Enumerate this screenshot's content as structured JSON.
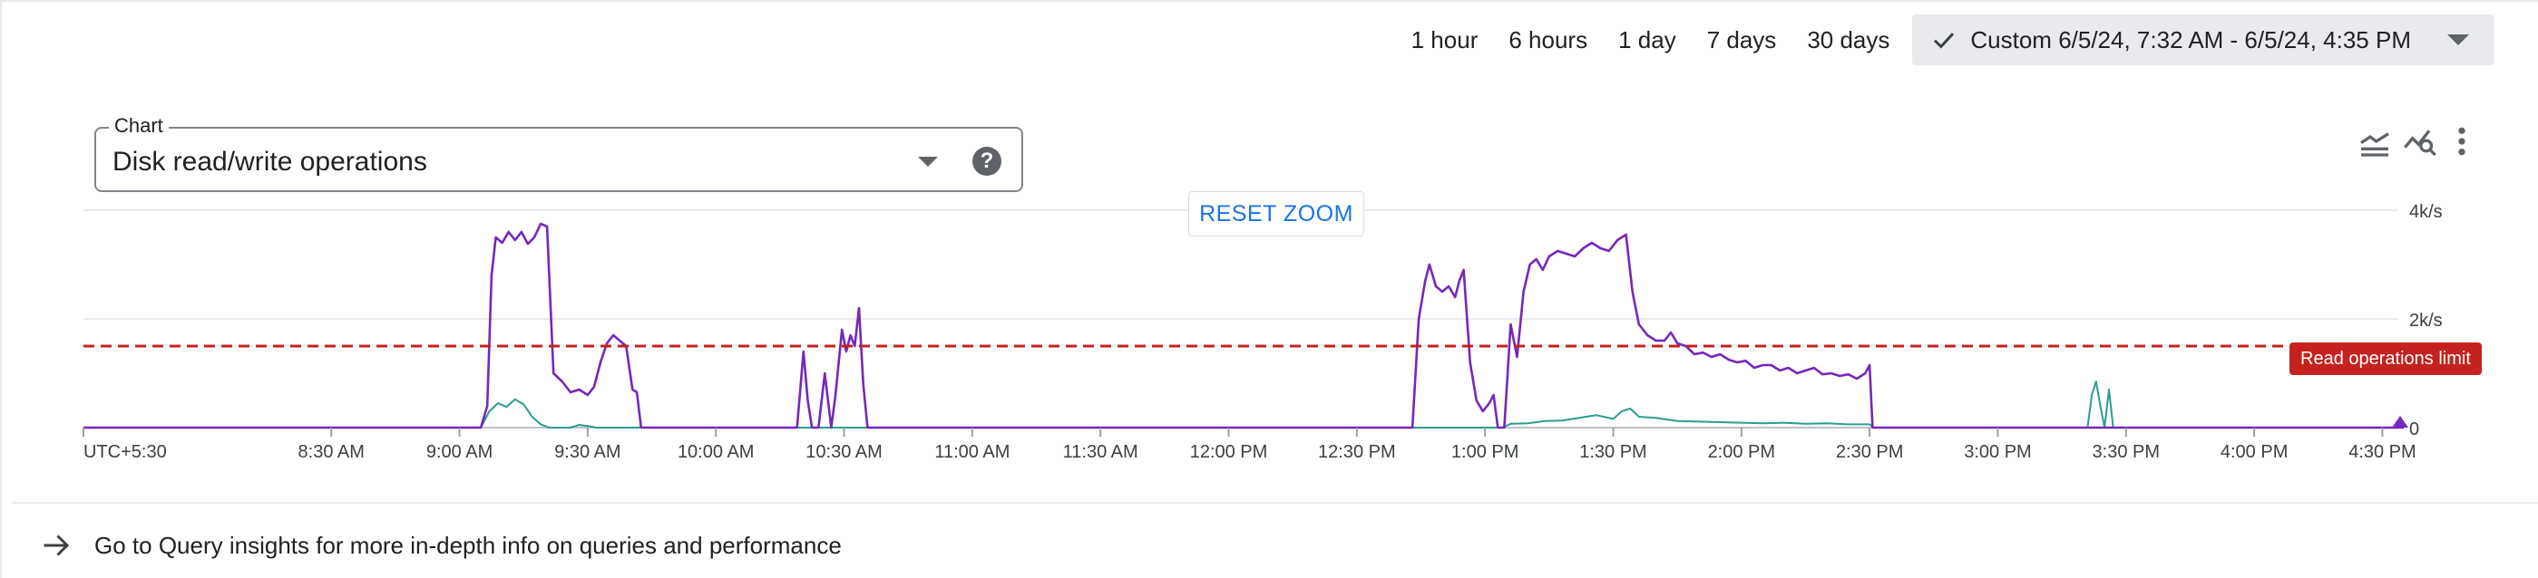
{
  "time_range": {
    "options": [
      "1 hour",
      "6 hours",
      "1 day",
      "7 days",
      "30 days"
    ],
    "custom_label": "Custom 6/5/24, 7:32 AM - 6/5/24, 4:35 PM"
  },
  "chart_selector": {
    "label": "Chart",
    "value": "Disk read/write operations"
  },
  "reset_zoom_label": "RESET ZOOM",
  "limit_badge": "Read operations limit",
  "footer_link": "Go to Query insights for more in-depth info on queries and performance",
  "icons": {
    "check": "check-icon",
    "dropdown": "chevron-down-icon",
    "help": "help-icon",
    "legend_toggle": "legend-toggle-icon",
    "explore": "explore-chart-icon",
    "more": "more-vert-icon",
    "arrow": "arrow-right-icon"
  },
  "colors": {
    "read_series": "#7627bb",
    "write_series": "#2a9d8f",
    "limit_line": "#c5221f",
    "accent": "#1a73e8"
  },
  "chart_data": {
    "type": "line",
    "timezone_label": "UTC+5:30",
    "x_ticks": [
      "8:30 AM",
      "9:00 AM",
      "9:30 AM",
      "10:00 AM",
      "10:30 AM",
      "11:00 AM",
      "11:30 AM",
      "12:00 PM",
      "12:30 PM",
      "1:00 PM",
      "1:30 PM",
      "2:00 PM",
      "2:30 PM",
      "3:00 PM",
      "3:30 PM",
      "4:00 PM",
      "4:30 PM"
    ],
    "x_tick_minutes": [
      510,
      540,
      570,
      600,
      630,
      660,
      690,
      720,
      750,
      780,
      810,
      840,
      870,
      900,
      930,
      960,
      990
    ],
    "x_range_minutes": [
      452,
      995
    ],
    "y_ticks": [
      "0",
      "2k/s",
      "4k/s"
    ],
    "y_tick_values": [
      0,
      2000,
      4000
    ],
    "ylim": [
      0,
      4000
    ],
    "grid": true,
    "threshold": {
      "value": 1500
    },
    "series": [
      {
        "points": [
          [
            452,
            0
          ],
          [
            545,
            0
          ],
          [
            546.5,
            400
          ],
          [
            547.5,
            2800
          ],
          [
            548.5,
            3500
          ],
          [
            550,
            3400
          ],
          [
            551.5,
            3600
          ],
          [
            553,
            3450
          ],
          [
            554.5,
            3600
          ],
          [
            556,
            3380
          ],
          [
            557.5,
            3500
          ],
          [
            559,
            3750
          ],
          [
            560.5,
            3700
          ],
          [
            562,
            1000
          ],
          [
            564,
            850
          ],
          [
            566,
            650
          ],
          [
            568,
            700
          ],
          [
            570,
            600
          ],
          [
            571.5,
            750
          ],
          [
            573,
            1200
          ],
          [
            574.5,
            1550
          ],
          [
            576,
            1700
          ],
          [
            577.5,
            1600
          ],
          [
            579,
            1500
          ],
          [
            580.5,
            700
          ],
          [
            581.5,
            650
          ],
          [
            582.5,
            0
          ],
          [
            619,
            0
          ],
          [
            620.5,
            1400
          ],
          [
            621.5,
            500
          ],
          [
            622.5,
            0
          ],
          [
            624,
            0
          ],
          [
            625.5,
            1000
          ],
          [
            627,
            0
          ],
          [
            628,
            600
          ],
          [
            629.5,
            1800
          ],
          [
            630.5,
            1400
          ],
          [
            631.5,
            1700
          ],
          [
            632.5,
            1500
          ],
          [
            633.5,
            2200
          ],
          [
            634.5,
            800
          ],
          [
            635.5,
            0
          ],
          [
            763,
            0
          ],
          [
            764.5,
            2000
          ],
          [
            766,
            2700
          ],
          [
            767,
            3000
          ],
          [
            768.5,
            2600
          ],
          [
            770,
            2500
          ],
          [
            771.5,
            2600
          ],
          [
            773,
            2400
          ],
          [
            774,
            2700
          ],
          [
            775,
            2900
          ],
          [
            776.5,
            1200
          ],
          [
            778,
            500
          ],
          [
            779.5,
            300
          ],
          [
            781,
            450
          ],
          [
            782,
            600
          ],
          [
            783,
            0
          ],
          [
            784.5,
            0
          ],
          [
            786,
            1900
          ],
          [
            787.5,
            1300
          ],
          [
            789,
            2500
          ],
          [
            790.5,
            3000
          ],
          [
            792,
            3100
          ],
          [
            793.5,
            2900
          ],
          [
            795,
            3150
          ],
          [
            797,
            3250
          ],
          [
            799,
            3200
          ],
          [
            801,
            3150
          ],
          [
            803,
            3300
          ],
          [
            805,
            3400
          ],
          [
            807,
            3300
          ],
          [
            809,
            3250
          ],
          [
            811,
            3450
          ],
          [
            813,
            3550
          ],
          [
            814.5,
            2500
          ],
          [
            816,
            1900
          ],
          [
            818,
            1700
          ],
          [
            820,
            1600
          ],
          [
            822,
            1600
          ],
          [
            823.5,
            1750
          ],
          [
            825,
            1550
          ],
          [
            827,
            1500
          ],
          [
            829,
            1350
          ],
          [
            831,
            1380
          ],
          [
            833,
            1300
          ],
          [
            835,
            1350
          ],
          [
            837,
            1250
          ],
          [
            839,
            1200
          ],
          [
            841,
            1230
          ],
          [
            843,
            1100
          ],
          [
            845,
            1150
          ],
          [
            847,
            1150
          ],
          [
            849,
            1050
          ],
          [
            851,
            1100
          ],
          [
            853,
            1000
          ],
          [
            855,
            1050
          ],
          [
            857,
            1100
          ],
          [
            859,
            980
          ],
          [
            861,
            1000
          ],
          [
            863,
            950
          ],
          [
            865,
            980
          ],
          [
            867,
            900
          ],
          [
            869,
            1000
          ],
          [
            870,
            1150
          ],
          [
            870.7,
            0
          ],
          [
            995,
            0
          ]
        ]
      },
      {
        "points": [
          [
            452,
            0
          ],
          [
            545,
            0
          ],
          [
            547,
            300
          ],
          [
            549,
            450
          ],
          [
            551,
            380
          ],
          [
            553,
            520
          ],
          [
            555,
            430
          ],
          [
            557,
            200
          ],
          [
            559,
            60
          ],
          [
            561,
            0
          ],
          [
            566,
            0
          ],
          [
            568,
            50
          ],
          [
            570,
            30
          ],
          [
            572,
            0
          ],
          [
            784,
            0
          ],
          [
            786,
            70
          ],
          [
            790,
            80
          ],
          [
            794,
            120
          ],
          [
            798,
            130
          ],
          [
            802,
            180
          ],
          [
            806,
            230
          ],
          [
            810,
            160
          ],
          [
            812,
            300
          ],
          [
            814,
            350
          ],
          [
            816,
            200
          ],
          [
            820,
            180
          ],
          [
            825,
            120
          ],
          [
            830,
            110
          ],
          [
            835,
            100
          ],
          [
            840,
            90
          ],
          [
            845,
            80
          ],
          [
            850,
            90
          ],
          [
            855,
            70
          ],
          [
            860,
            80
          ],
          [
            865,
            60
          ],
          [
            870,
            60
          ],
          [
            871,
            0
          ],
          [
            921,
            0
          ],
          [
            922,
            600
          ],
          [
            923,
            850
          ],
          [
            924,
            400
          ],
          [
            925,
            0
          ],
          [
            926,
            700
          ],
          [
            927,
            0
          ],
          [
            995,
            0
          ]
        ]
      }
    ]
  }
}
